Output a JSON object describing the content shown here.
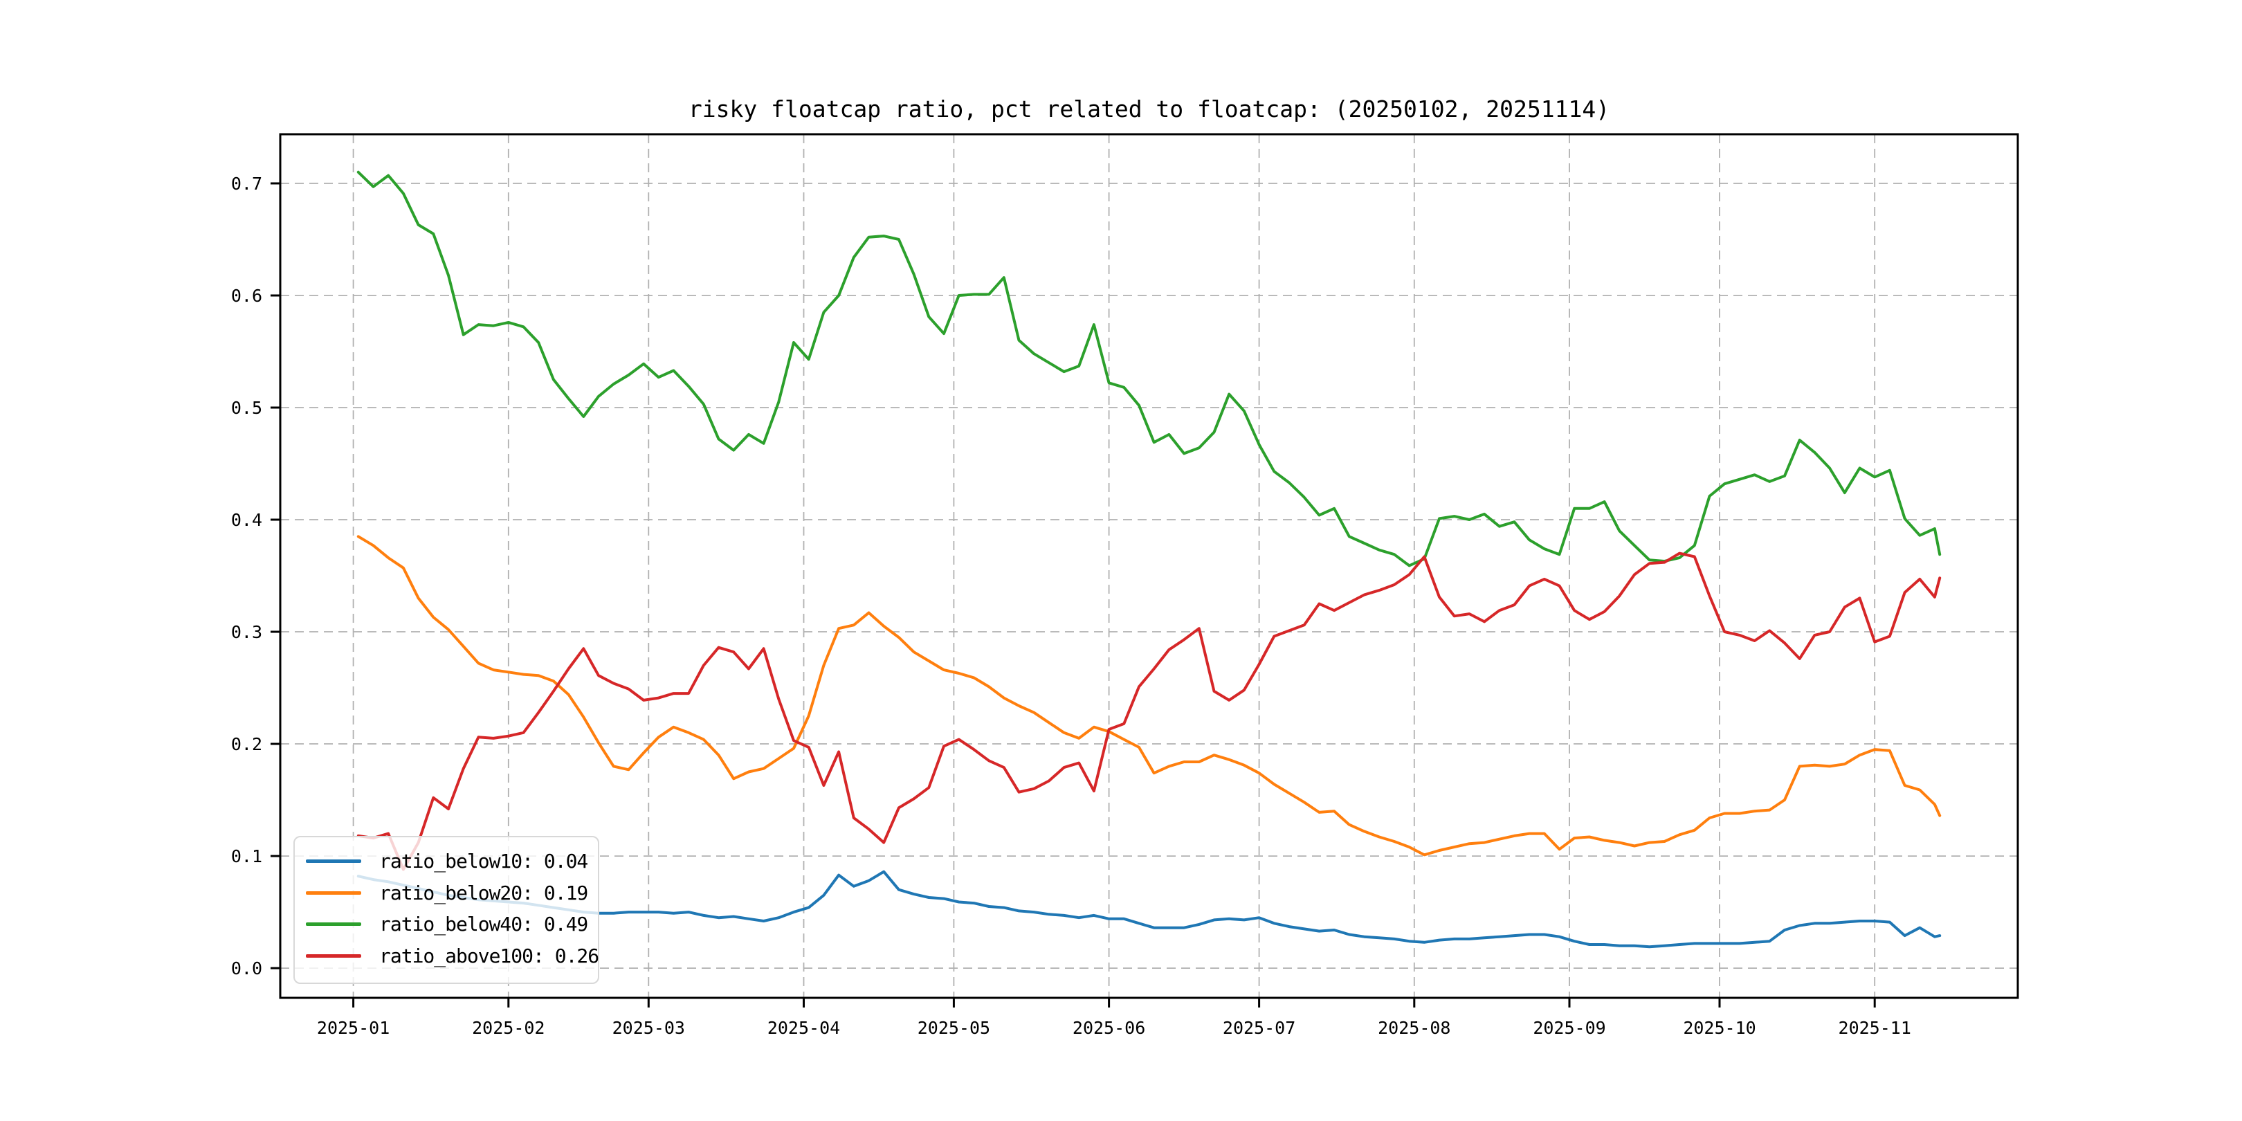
{
  "chart_data": {
    "type": "line",
    "title": "risky floatcap ratio, pct related to floatcap: (20250102, 20251114)",
    "grid": true,
    "legend_position": "lower left",
    "background_color": "#ffffff",
    "x_unit": "days since 2025-01-02",
    "x_tick_labels": [
      "2025-01",
      "2025-02",
      "2025-03",
      "2025-04",
      "2025-05",
      "2025-06",
      "2025-07",
      "2025-08",
      "2025-09",
      "2025-10",
      "2025-11"
    ],
    "x_tick_days": [
      -1,
      30,
      58,
      89,
      119,
      150,
      180,
      211,
      242,
      272,
      303
    ],
    "y_tick_labels": [
      "0.0",
      "0.1",
      "0.2",
      "0.3",
      "0.4",
      "0.5",
      "0.6",
      "0.7"
    ],
    "y_ticks": [
      0.0,
      0.1,
      0.2,
      0.3,
      0.4,
      0.5,
      0.6,
      0.7
    ],
    "xlim_days": [
      -15.6,
      331.6
    ],
    "ylim": [
      -0.0265,
      0.7438
    ],
    "x_days": [
      0,
      3,
      6,
      9,
      12,
      15,
      18,
      21,
      24,
      27,
      30,
      33,
      36,
      39,
      42,
      45,
      48,
      51,
      54,
      57,
      60,
      63,
      66,
      69,
      72,
      75,
      78,
      81,
      84,
      87,
      90,
      93,
      96,
      99,
      102,
      105,
      108,
      111,
      114,
      117,
      120,
      123,
      126,
      129,
      132,
      135,
      138,
      141,
      144,
      147,
      150,
      153,
      156,
      159,
      162,
      165,
      168,
      171,
      174,
      177,
      180,
      183,
      186,
      189,
      192,
      195,
      198,
      201,
      204,
      207,
      210,
      213,
      216,
      219,
      222,
      225,
      228,
      231,
      234,
      237,
      240,
      243,
      246,
      249,
      252,
      255,
      258,
      261,
      264,
      267,
      270,
      273,
      276,
      279,
      282,
      285,
      288,
      291,
      294,
      297,
      300,
      303,
      306,
      309,
      312,
      315,
      316
    ],
    "series": [
      {
        "name": "ratio_below10",
        "legend_label": "ratio_below10: 0.04",
        "color": "#1f77b4",
        "values": [
          0.082,
          0.079,
          0.077,
          0.074,
          0.071,
          0.068,
          0.065,
          0.063,
          0.061,
          0.06,
          0.059,
          0.058,
          0.056,
          0.054,
          0.052,
          0.05,
          0.049,
          0.049,
          0.05,
          0.05,
          0.05,
          0.049,
          0.05,
          0.047,
          0.045,
          0.046,
          0.044,
          0.042,
          0.045,
          0.05,
          0.054,
          0.065,
          0.083,
          0.073,
          0.078,
          0.086,
          0.07,
          0.066,
          0.063,
          0.062,
          0.059,
          0.058,
          0.055,
          0.054,
          0.051,
          0.05,
          0.048,
          0.047,
          0.045,
          0.047,
          0.044,
          0.044,
          0.04,
          0.036,
          0.036,
          0.036,
          0.039,
          0.043,
          0.044,
          0.043,
          0.045,
          0.04,
          0.037,
          0.035,
          0.033,
          0.034,
          0.03,
          0.028,
          0.027,
          0.026,
          0.024,
          0.023,
          0.025,
          0.026,
          0.026,
          0.027,
          0.028,
          0.029,
          0.03,
          0.03,
          0.028,
          0.024,
          0.021,
          0.021,
          0.02,
          0.02,
          0.019,
          0.02,
          0.021,
          0.022,
          0.022,
          0.022,
          0.022,
          0.023,
          0.024,
          0.034,
          0.038,
          0.04,
          0.04,
          0.041,
          0.042,
          0.042,
          0.041,
          0.029,
          0.036,
          0.028,
          0.029
        ]
      },
      {
        "name": "ratio_below20",
        "legend_label": "ratio_below20: 0.19",
        "color": "#ff7f0e",
        "values": [
          0.385,
          0.377,
          0.366,
          0.357,
          0.33,
          0.313,
          0.302,
          0.287,
          0.272,
          0.266,
          0.264,
          0.262,
          0.261,
          0.256,
          0.244,
          0.224,
          0.201,
          0.18,
          0.177,
          0.192,
          0.206,
          0.215,
          0.21,
          0.204,
          0.19,
          0.169,
          0.175,
          0.178,
          0.187,
          0.196,
          0.225,
          0.27,
          0.303,
          0.306,
          0.317,
          0.305,
          0.295,
          0.282,
          0.274,
          0.266,
          0.263,
          0.259,
          0.251,
          0.241,
          0.234,
          0.228,
          0.219,
          0.21,
          0.205,
          0.215,
          0.211,
          0.204,
          0.197,
          0.174,
          0.18,
          0.184,
          0.184,
          0.19,
          0.186,
          0.181,
          0.174,
          0.164,
          0.156,
          0.148,
          0.139,
          0.14,
          0.128,
          0.122,
          0.117,
          0.113,
          0.108,
          0.101,
          0.105,
          0.108,
          0.111,
          0.112,
          0.115,
          0.118,
          0.12,
          0.12,
          0.106,
          0.116,
          0.117,
          0.114,
          0.112,
          0.109,
          0.112,
          0.113,
          0.119,
          0.123,
          0.134,
          0.138,
          0.138,
          0.14,
          0.141,
          0.15,
          0.18,
          0.181,
          0.18,
          0.182,
          0.19,
          0.195,
          0.194,
          0.163,
          0.159,
          0.146,
          0.136
        ]
      },
      {
        "name": "ratio_below40",
        "legend_label": "ratio_below40: 0.49",
        "color": "#2ca02c",
        "values": [
          0.71,
          0.697,
          0.707,
          0.691,
          0.663,
          0.655,
          0.618,
          0.565,
          0.574,
          0.573,
          0.576,
          0.572,
          0.558,
          0.525,
          0.508,
          0.492,
          0.51,
          0.521,
          0.529,
          0.539,
          0.527,
          0.533,
          0.519,
          0.503,
          0.472,
          0.462,
          0.476,
          0.468,
          0.505,
          0.558,
          0.543,
          0.585,
          0.6,
          0.634,
          0.652,
          0.653,
          0.65,
          0.619,
          0.581,
          0.566,
          0.6,
          0.601,
          0.601,
          0.616,
          0.56,
          0.548,
          0.54,
          0.532,
          0.537,
          0.574,
          0.522,
          0.518,
          0.502,
          0.469,
          0.476,
          0.459,
          0.464,
          0.478,
          0.512,
          0.497,
          0.467,
          0.443,
          0.433,
          0.42,
          0.404,
          0.41,
          0.385,
          0.379,
          0.373,
          0.369,
          0.359,
          0.365,
          0.401,
          0.403,
          0.4,
          0.405,
          0.394,
          0.398,
          0.382,
          0.374,
          0.369,
          0.41,
          0.41,
          0.416,
          0.39,
          0.377,
          0.364,
          0.363,
          0.366,
          0.377,
          0.421,
          0.432,
          0.436,
          0.44,
          0.434,
          0.439,
          0.471,
          0.46,
          0.446,
          0.424,
          0.446,
          0.438,
          0.444,
          0.401,
          0.386,
          0.392,
          0.369
        ]
      },
      {
        "name": "ratio_above100",
        "legend_label": "ratio_above100: 0.26",
        "color": "#d62728",
        "values": [
          0.118,
          0.116,
          0.12,
          0.088,
          0.112,
          0.152,
          0.142,
          0.178,
          0.206,
          0.205,
          0.207,
          0.21,
          0.228,
          0.247,
          0.267,
          0.285,
          0.261,
          0.254,
          0.249,
          0.239,
          0.241,
          0.245,
          0.245,
          0.27,
          0.286,
          0.282,
          0.267,
          0.285,
          0.24,
          0.203,
          0.197,
          0.163,
          0.193,
          0.134,
          0.124,
          0.112,
          0.143,
          0.151,
          0.161,
          0.198,
          0.204,
          0.195,
          0.185,
          0.179,
          0.157,
          0.16,
          0.167,
          0.179,
          0.183,
          0.158,
          0.213,
          0.218,
          0.251,
          0.267,
          0.284,
          0.293,
          0.303,
          0.247,
          0.239,
          0.248,
          0.271,
          0.296,
          0.301,
          0.306,
          0.325,
          0.319,
          0.326,
          0.333,
          0.337,
          0.342,
          0.351,
          0.367,
          0.331,
          0.314,
          0.316,
          0.309,
          0.319,
          0.324,
          0.341,
          0.347,
          0.341,
          0.319,
          0.311,
          0.318,
          0.332,
          0.351,
          0.361,
          0.362,
          0.37,
          0.367,
          0.332,
          0.3,
          0.297,
          0.292,
          0.301,
          0.29,
          0.276,
          0.297,
          0.3,
          0.322,
          0.33,
          0.291,
          0.296,
          0.335,
          0.347,
          0.331,
          0.348
        ]
      }
    ]
  }
}
